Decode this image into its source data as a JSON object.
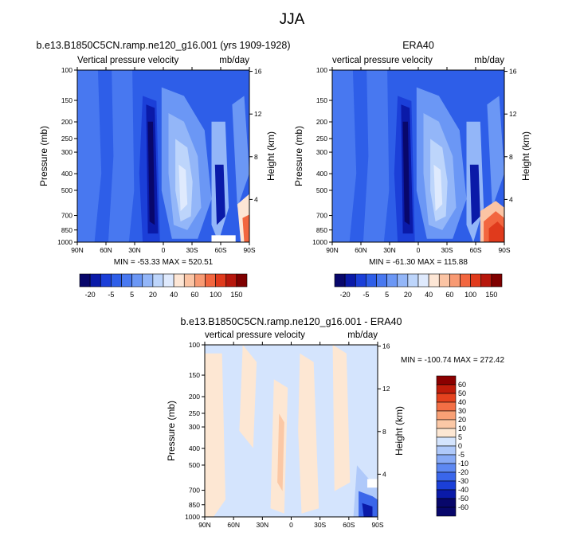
{
  "page_title": "JJA",
  "colors": {
    "level_fills": [
      "#08076b",
      "#0a1aa8",
      "#1b3fd8",
      "#2e5ee8",
      "#4878f0",
      "#6b97f5",
      "#93b6f8",
      "#bdd5fb",
      "#dfeafd",
      "#fde6d5",
      "#fbc4a4",
      "#f89a73",
      "#f2663f",
      "#e03a1c",
      "#b7170c",
      "#7f0000"
    ],
    "diff_fills": [
      "#08076b",
      "#0a1aa8",
      "#1b3fd8",
      "#3a66ea",
      "#5d88f2",
      "#87aaf6",
      "#afc9fa",
      "#d4e4fd",
      "#fde7d3",
      "#fbc8a6",
      "#f8a075",
      "#f36f45",
      "#e5421e",
      "#bf1c0a",
      "#8b0000"
    ],
    "bar_outline": "#000000"
  },
  "chart_data": [
    {
      "type": "heatmap",
      "title": "b.e13.B1850C5CN.ramp.ne120_g16.001 (yrs 1909-1928)",
      "subtitle_left": "Vertical pressure velocity",
      "subtitle_right": "mb/day",
      "xlabel": "",
      "ylabel": "Pressure (mb)",
      "ylabel_right": "Height (km)",
      "x_ticks": [
        "90N",
        "60N",
        "30N",
        "0",
        "30S",
        "60S",
        "90S"
      ],
      "y_ticks": [
        "100",
        "150",
        "200",
        "250",
        "300",
        "400",
        "500",
        "700",
        "850",
        "1000"
      ],
      "y_right_ticks": [
        "16",
        "12",
        "8",
        "4"
      ],
      "min_text": "MIN = -53.33",
      "max_text": "MAX = 520.51",
      "colorbar_labels": [
        "-20",
        "-5",
        "5",
        "20",
        "40",
        "60",
        "100",
        "150"
      ]
    },
    {
      "type": "heatmap",
      "title": "ERA40",
      "subtitle_left": "vertical pressure velocity",
      "subtitle_right": "mb/day",
      "xlabel": "",
      "ylabel": "Pressure (mb)",
      "ylabel_right": "Height (km)",
      "x_ticks": [
        "90N",
        "60N",
        "30N",
        "0",
        "30S",
        "60S",
        "90S"
      ],
      "y_ticks": [
        "100",
        "150",
        "200",
        "250",
        "300",
        "400",
        "500",
        "700",
        "850",
        "1000"
      ],
      "y_right_ticks": [
        "16",
        "12",
        "8",
        "4"
      ],
      "min_text": "MIN = -61.30",
      "max_text": "MAX = 115.88",
      "colorbar_labels": [
        "-20",
        "-5",
        "5",
        "20",
        "40",
        "60",
        "100",
        "150"
      ]
    },
    {
      "type": "heatmap",
      "title": "b.e13.B1850C5CN.ramp.ne120_g16.001 - ERA40",
      "subtitle_left": "vertical pressure velocity",
      "subtitle_right": "mb/day",
      "xlabel": "",
      "ylabel": "Pressure (mb)",
      "ylabel_right": "Height (km)",
      "x_ticks": [
        "90N",
        "60N",
        "30N",
        "0",
        "30S",
        "60S",
        "90S"
      ],
      "y_ticks": [
        "100",
        "150",
        "200",
        "250",
        "300",
        "400",
        "500",
        "700",
        "850",
        "1000"
      ],
      "y_right_ticks": [
        "16",
        "12",
        "8",
        "4"
      ],
      "min_text": "MIN = -100.74",
      "max_text": "MAX = 272.42",
      "colorbar_labels": [
        "60",
        "50",
        "40",
        "30",
        "20",
        "10",
        "5",
        "0",
        "-5",
        "-10",
        "-20",
        "-30",
        "-40",
        "-50",
        "-60"
      ]
    }
  ]
}
